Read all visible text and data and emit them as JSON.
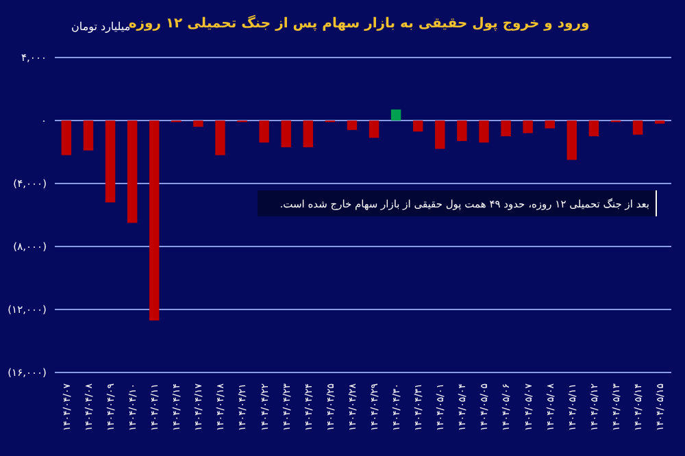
{
  "chart_data": {
    "type": "bar",
    "title": "ورود و خروج پول حقیقی به بازار سهام پس از جنگ تحمیلی ۱۲ روزه",
    "ylabel": "میلیارد تومان",
    "categories": [
      "۱۴۰۴/۰۴/۰۷",
      "۱۴۰۴/۰۴/۰۸",
      "۱۴۰۴/۰۴/۰۹",
      "۱۴۰۴/۰۴/۱۰",
      "۱۴۰۴/۰۴/۱۱",
      "۱۴۰۴/۰۴/۱۴",
      "۱۴۰۴/۰۴/۱۷",
      "۱۴۰۴/۰۴/۱۸",
      "۱۴۰۴/۰۴/۲۱",
      "۱۴۰۴/۰۴/۲۲",
      "۱۴۰۴/۰۴/۲۳",
      "۱۴۰۴/۰۴/۲۴",
      "۱۴۰۴/۰۴/۲۵",
      "۱۴۰۴/۰۴/۲۸",
      "۱۴۰۴/۰۴/۲۹",
      "۱۴۰۴/۰۴/۳۰",
      "۱۴۰۴/۰۴/۳۱",
      "۱۴۰۴/۰۵/۰۱",
      "۱۴۰۴/۰۵/۰۴",
      "۱۴۰۴/۰۵/۰۵",
      "۱۴۰۴/۰۵/۰۶",
      "۱۴۰۴/۰۵/۰۷",
      "۱۴۰۴/۰۵/۰۸",
      "۱۴۰۴/۰۵/۱۱",
      "۱۴۰۴/۰۵/۱۲",
      "۱۴۰۴/۰۵/۱۳",
      "۱۴۰۴/۰۵/۱۴",
      "۱۴۰۴/۰۵/۱۵"
    ],
    "values": [
      -2200,
      -1900,
      -5200,
      -6500,
      -12700,
      -100,
      -400,
      -2200,
      -100,
      -1400,
      -1700,
      -1700,
      -100,
      -600,
      -1100,
      700,
      -700,
      -1800,
      -1300,
      -1400,
      -1000,
      -800,
      -500,
      -2500,
      -1000,
      -100,
      -900,
      -200
    ],
    "colors": [
      "#c00000",
      "#c00000",
      "#c00000",
      "#c00000",
      "#c00000",
      "#c00000",
      "#c00000",
      "#c00000",
      "#c00000",
      "#c00000",
      "#c00000",
      "#c00000",
      "#c00000",
      "#c00000",
      "#c00000",
      "#00a050",
      "#c00000",
      "#c00000",
      "#c00000",
      "#c00000",
      "#c00000",
      "#c00000",
      "#c00000",
      "#c00000",
      "#c00000",
      "#c00000",
      "#c00000",
      "#c00000"
    ],
    "ylim": [
      -16000,
      4000
    ],
    "yticks": [
      {
        "value": 4000,
        "label": "۴,۰۰۰"
      },
      {
        "value": 0,
        "label": "۰"
      },
      {
        "value": -4000,
        "label": "(۴,۰۰۰)"
      },
      {
        "value": -8000,
        "label": "(۸,۰۰۰)"
      },
      {
        "value": -12000,
        "label": "(۱۲,۰۰۰)"
      },
      {
        "value": -16000,
        "label": "(۱۶,۰۰۰)"
      }
    ],
    "grid": "y",
    "annotations": [
      "بعد از جنگ تحمیلی ۱۲ روزه، حدود ۴۹ همت پول حقیقی از بازار سهام خارج شده است."
    ]
  }
}
